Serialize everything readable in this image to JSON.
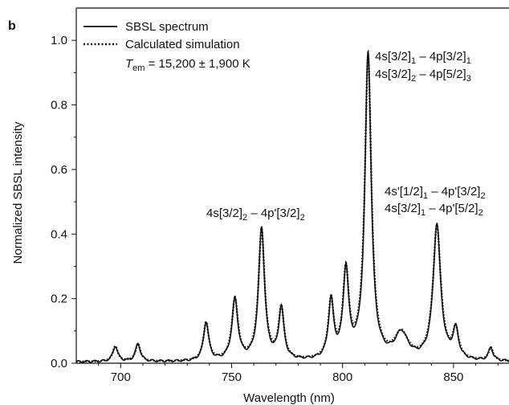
{
  "panel_label": "b",
  "chart_data": {
    "type": "line",
    "xlabel": "Wavelength (nm)",
    "ylabel": "Normalized SBSL intensity",
    "xlim": [
      680,
      875
    ],
    "ylim": [
      0,
      1.1
    ],
    "x_ticks": [
      "700",
      "750",
      "800",
      "850"
    ],
    "y_ticks": [
      "0.0",
      "0.2",
      "0.4",
      "0.6",
      "0.8",
      "1.0"
    ],
    "legend_position": "top-left",
    "series": [
      {
        "name": "SBSL spectrum",
        "style": "solid"
      },
      {
        "name": "Calculated simulation",
        "style": "dotted"
      }
    ],
    "baseline": 0.004,
    "peaks": [
      {
        "x": 697.6,
        "height": 0.048,
        "width": 1.3
      },
      {
        "x": 707.8,
        "height": 0.055,
        "width": 1.3
      },
      {
        "x": 738.5,
        "height": 0.12,
        "width": 1.4
      },
      {
        "x": 751.5,
        "height": 0.19,
        "width": 1.6
      },
      {
        "x": 763.5,
        "height": 0.41,
        "width": 1.6
      },
      {
        "x": 772.4,
        "height": 0.16,
        "width": 1.4
      },
      {
        "x": 794.8,
        "height": 0.18,
        "width": 1.4
      },
      {
        "x": 801.5,
        "height": 0.27,
        "width": 1.5
      },
      {
        "x": 811.5,
        "height": 0.95,
        "width": 1.7
      },
      {
        "x": 826.5,
        "height": 0.08,
        "width": 3.5
      },
      {
        "x": 842.5,
        "height": 0.42,
        "width": 2.0
      },
      {
        "x": 851.0,
        "height": 0.09,
        "width": 1.5
      },
      {
        "x": 866.8,
        "height": 0.04,
        "width": 1.2
      }
    ],
    "annotations": [
      {
        "lines": [
          "4s[3/2]₂ – 4p′[3/2]₂"
        ],
        "near_x": 764
      },
      {
        "lines": [
          "4s[3/2]₁ – 4p[3/2]₁",
          "4s[3/2]₂ – 4p[5/2]₃"
        ],
        "near_x": 811
      },
      {
        "lines": [
          "4s′[1/2]₁ – 4p′[3/2]₂",
          "4s[3/2]₁ – 4p′[5/2]₂"
        ],
        "near_x": 842
      }
    ],
    "temperature_label": "T_em = 15,200 ± 1,900 K"
  },
  "legend": {
    "line1": "SBSL spectrum",
    "line2": "Calculated simulation",
    "temp_T": "T",
    "temp_sub": "em",
    "temp_rest": " = 15,200 ± 1,900 K"
  },
  "annotations": {
    "a1_p1": "4s[3/2]",
    "a1_s1": "2",
    "a1_p2": " – 4p'[3/2]",
    "a1_s2": "2",
    "a2_l1_p1": "4s[3/2]",
    "a2_l1_s1": "1",
    "a2_l1_p2": " – 4p[3/2]",
    "a2_l1_s2": "1",
    "a2_l2_p1": "4s[3/2]",
    "a2_l2_s1": "2",
    "a2_l2_p2": " – 4p[5/2]",
    "a2_l2_s2": "3",
    "a3_l1_p1": "4s'[1/2]",
    "a3_l1_s1": "1",
    "a3_l1_p2": " – 4p'[3/2]",
    "a3_l1_s2": "2",
    "a3_l2_p1": "4s[3/2]",
    "a3_l2_s1": "1",
    "a3_l2_p2": " – 4p'[5/2]",
    "a3_l2_s2": "2"
  }
}
